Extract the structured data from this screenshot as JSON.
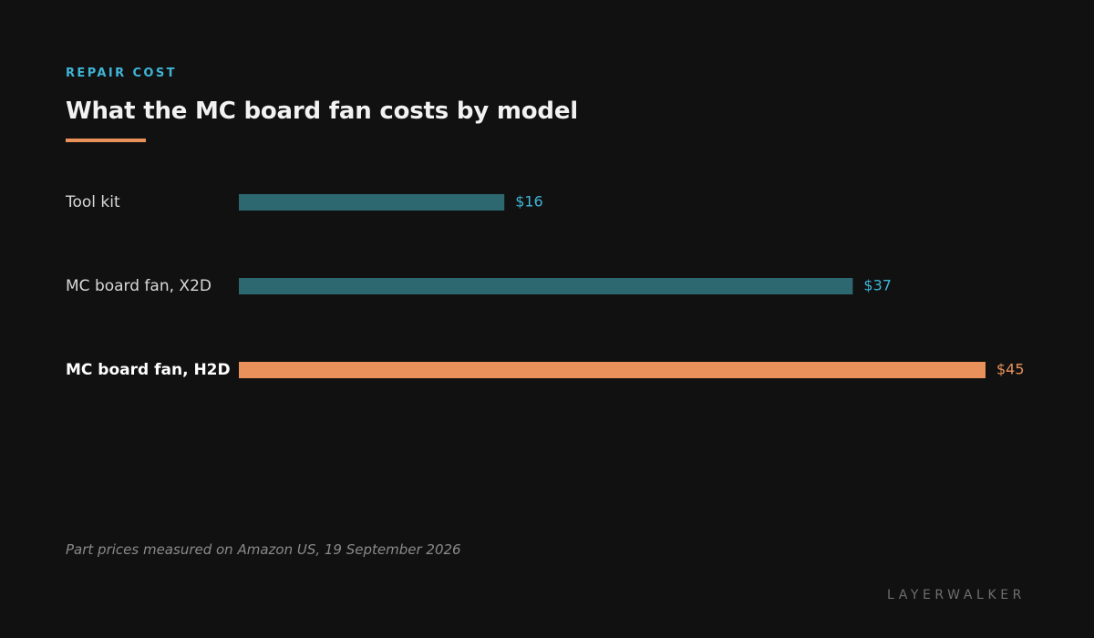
{
  "header": {
    "eyebrow": "REPAIR COST",
    "title": "What the MC board fan costs by model"
  },
  "chart_data": {
    "type": "bar",
    "orientation": "horizontal",
    "title": "What the MC board fan costs by model",
    "xlabel": "",
    "ylabel": "",
    "categories": [
      "Tool kit",
      "MC board fan, X2D",
      "MC board fan, H2D"
    ],
    "values": [
      16,
      37,
      45
    ],
    "value_labels": [
      "$16",
      "$37",
      "$45"
    ],
    "highlight": "MC board fan, H2D",
    "xlim": [
      0,
      45
    ],
    "grid": false,
    "legend": "none"
  },
  "colors": {
    "bar_default": "#2d6870",
    "bar_highlight": "#e8915a",
    "value_default": "#3fb4d6",
    "value_highlight": "#e8915a",
    "accent_rule": "#e8915a",
    "background": "#111111"
  },
  "footer": {
    "note": "Part prices measured on Amazon US, 19 September 2026",
    "brand": "LAYERWALKER"
  }
}
